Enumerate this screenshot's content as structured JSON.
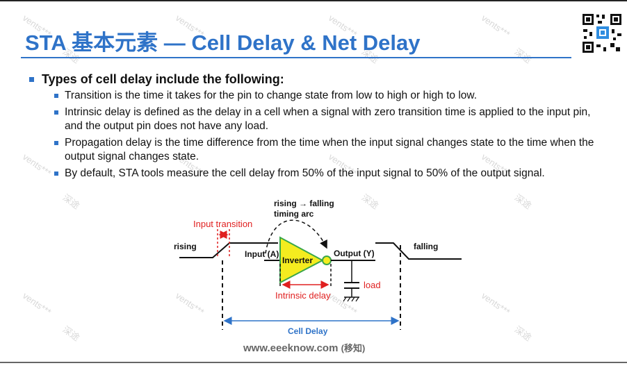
{
  "title": "STA 基本元素 — Cell Delay & Net Delay",
  "heading": "Types of cell delay include the following:",
  "items": [
    "Transition is the time it takes for the pin to change state from low to high or high to low.",
    "Intrinsic delay is defined as the delay in a cell when a signal with zero transition time is applied to the input pin, and the output pin does not have any load.",
    "Propagation delay is the time difference from the time when the input signal changes state to the time when the output signal changes state.",
    "By default, STA tools measure the cell delay from 50% of the input signal to 50% of the output signal."
  ],
  "diagram": {
    "timing_arc_line1": "rising → falling",
    "timing_arc_line2": "timing arc",
    "input_transition": "Input transition",
    "rising": "rising",
    "falling": "falling",
    "input_pin": "Input (A)",
    "output_pin": "Output (Y)",
    "cell": "Inverter",
    "intrinsic_delay": "Intrinsic delay",
    "load": "load",
    "cell_delay": "Cell Delay"
  },
  "footer": {
    "url": "www.eeeknow.com",
    "suffix": "(移知)"
  },
  "watermark": {
    "latin": "vents***",
    "cjk": "深途"
  },
  "colors": {
    "title": "#2f73c8",
    "bullet": "#2f73c8",
    "accent_red": "#e02020",
    "cell_fill": "#f5ec1f",
    "cell_stroke": "#3aa64a",
    "cell_delay_arrow": "#2f73c8"
  },
  "icons": {
    "qr": "qr-code-icon"
  }
}
